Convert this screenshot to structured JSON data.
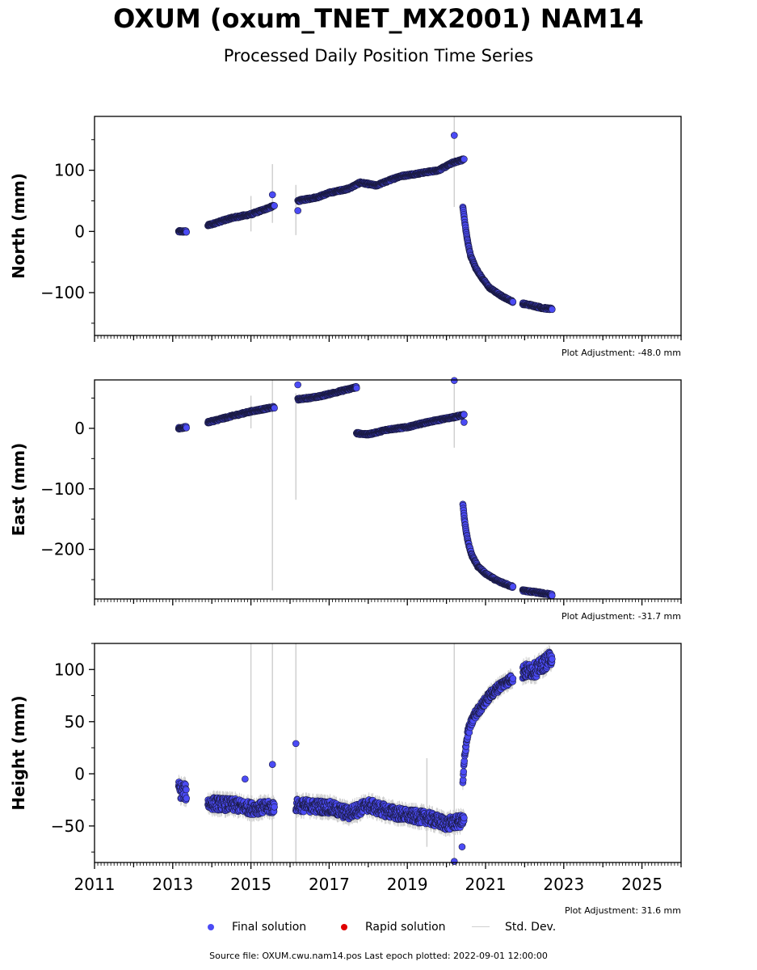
{
  "title": "OXUM (oxum_TNET_MX2001) NAM14",
  "subtitle": "Processed Daily Position Time Series",
  "colors": {
    "final": "#4b4bf5",
    "final_edge": "#1a1a40",
    "rapid": "#e00000",
    "stddev": "#d0d0d0"
  },
  "legend": {
    "final": "Final solution",
    "rapid": "Rapid solution",
    "stddev": "Std. Dev."
  },
  "footer": "Source file: OXUM.cwu.nam14.pos  Last epoch plotted: 2022-09-01 12:00:00",
  "chart_data": [
    {
      "type": "scatter",
      "ylabel": "North (mm)",
      "adjustment": "Plot Adjustment: -48.0 mm",
      "xlim": [
        2011,
        2026
      ],
      "ylim": [
        -170,
        188
      ],
      "yticks": [
        -100,
        0,
        100
      ],
      "ytick_labels": [
        "−100",
        "0",
        "100"
      ],
      "x_labels_visible": false,
      "segments": [
        {
          "x": [
            2013.15,
            2013.35
          ],
          "y": [
            0,
            0
          ],
          "noise": 1.5
        },
        {
          "x": [
            2013.9,
            2014.5,
            2015.0,
            2015.6
          ],
          "y": [
            10,
            22,
            28,
            42
          ],
          "noise": 1.5
        },
        {
          "x": [
            2016.2,
            2016.7,
            2017.0,
            2017.5,
            2017.8,
            2018.2,
            2018.8,
            2019.3,
            2019.8,
            2020.15,
            2020.45
          ],
          "y": [
            50,
            56,
            63,
            70,
            80,
            75,
            90,
            95,
            100,
            112,
            118
          ],
          "noise": 1.5
        },
        {
          "x": [
            2020.42,
            2020.46,
            2020.5,
            2020.55,
            2020.62,
            2020.75,
            2020.9,
            2021.1,
            2021.4,
            2021.7
          ],
          "y": [
            40,
            20,
            0,
            -20,
            -40,
            -60,
            -75,
            -92,
            -105,
            -115
          ],
          "noise": 1.2
        },
        {
          "x": [
            2021.95,
            2022.2,
            2022.45,
            2022.7
          ],
          "y": [
            -118,
            -121,
            -125,
            -127
          ],
          "noise": 1.5
        }
      ],
      "outliers": [
        {
          "x": 2015.55,
          "y": 60
        },
        {
          "x": 2016.2,
          "y": 34
        },
        {
          "x": 2020.2,
          "y": 157
        }
      ],
      "errorbars": [
        {
          "x": 2015.0,
          "y1": 0,
          "y2": 58
        },
        {
          "x": 2015.55,
          "y1": 14,
          "y2": 110
        },
        {
          "x": 2016.15,
          "y1": -6,
          "y2": 76
        },
        {
          "x": 2020.2,
          "y1": 40,
          "y2": 188
        }
      ]
    },
    {
      "type": "scatter",
      "ylabel": "East (mm)",
      "adjustment": "Plot Adjustment: -31.7 mm",
      "xlim": [
        2011,
        2026
      ],
      "ylim": [
        -282,
        80
      ],
      "yticks": [
        -200,
        -100,
        0
      ],
      "ytick_labels": [
        "−200",
        "−100",
        "0"
      ],
      "x_labels_visible": false,
      "segments": [
        {
          "x": [
            2013.15,
            2013.35
          ],
          "y": [
            0,
            2
          ],
          "noise": 1.5
        },
        {
          "x": [
            2013.9,
            2014.5,
            2015.0,
            2015.6
          ],
          "y": [
            10,
            20,
            28,
            35
          ],
          "noise": 1.5
        },
        {
          "x": [
            2016.2,
            2016.7,
            2017.2,
            2017.7
          ],
          "y": [
            48,
            52,
            60,
            68
          ],
          "noise": 1.5
        },
        {
          "x": [
            2017.7,
            2018.0,
            2018.5,
            2019.0,
            2019.5,
            2020.45
          ],
          "y": [
            -8,
            -10,
            -2,
            2,
            10,
            22
          ],
          "noise": 1.5
        },
        {
          "x": [
            2020.42,
            2020.46,
            2020.5,
            2020.56,
            2020.65,
            2020.8,
            2021.0,
            2021.3,
            2021.7
          ],
          "y": [
            -125,
            -150,
            -170,
            -190,
            -210,
            -228,
            -240,
            -252,
            -262
          ],
          "noise": 1.5
        },
        {
          "x": [
            2021.95,
            2022.3,
            2022.7
          ],
          "y": [
            -268,
            -271,
            -275
          ],
          "noise": 1.5
        }
      ],
      "outliers": [
        {
          "x": 2016.2,
          "y": 72
        },
        {
          "x": 2020.2,
          "y": 79
        },
        {
          "x": 2020.45,
          "y": 10
        }
      ],
      "errorbars": [
        {
          "x": 2015.0,
          "y1": 0,
          "y2": 54
        },
        {
          "x": 2015.55,
          "y1": -268,
          "y2": 80
        },
        {
          "x": 2016.15,
          "y1": -118,
          "y2": 58
        },
        {
          "x": 2020.2,
          "y1": -32,
          "y2": 80
        }
      ]
    },
    {
      "type": "scatter",
      "ylabel": "Height (mm)",
      "adjustment": "Plot Adjustment: 31.6 mm",
      "xlim": [
        2011,
        2026
      ],
      "ylim": [
        -85,
        125
      ],
      "yticks": [
        -50,
        0,
        50,
        100
      ],
      "ytick_labels": [
        "−50",
        "0",
        "50",
        "100"
      ],
      "xticks": [
        2011,
        2013,
        2015,
        2017,
        2019,
        2021,
        2023,
        2025
      ],
      "xtick_labels": [
        "2011",
        "2013",
        "2015",
        "2017",
        "2019",
        "2021",
        "2023",
        "2025"
      ],
      "x_labels_visible": true,
      "segments": [
        {
          "x": [
            2013.15,
            2013.35
          ],
          "y": [
            -15,
            -18
          ],
          "noise": 8
        },
        {
          "x": [
            2013.9,
            2014.6,
            2015.0,
            2015.6
          ],
          "y": [
            -28,
            -30,
            -33,
            -32
          ],
          "noise": 6
        },
        {
          "x": [
            2016.15,
            2017.0,
            2017.5,
            2018.0,
            2018.5,
            2019.0,
            2019.5,
            2020.0,
            2020.45
          ],
          "y": [
            -30,
            -32,
            -38,
            -30,
            -36,
            -40,
            -42,
            -48,
            -45
          ],
          "noise": 6
        },
        {
          "x": [
            2020.42,
            2020.47,
            2020.55,
            2020.7,
            2020.9,
            2021.1,
            2021.4,
            2021.7
          ],
          "y": [
            -10,
            20,
            40,
            55,
            65,
            75,
            85,
            92
          ],
          "noise": 4
        },
        {
          "x": [
            2021.95,
            2022.3,
            2022.7
          ],
          "y": [
            98,
            100,
            112
          ],
          "noise": 7
        }
      ],
      "outliers": [
        {
          "x": 2014.85,
          "y": -5
        },
        {
          "x": 2015.55,
          "y": 9
        },
        {
          "x": 2016.15,
          "y": 29
        },
        {
          "x": 2020.2,
          "y": -84
        },
        {
          "x": 2020.4,
          "y": -70
        }
      ],
      "errorbars": [
        {
          "x": 2015.0,
          "y1": -85,
          "y2": 125
        },
        {
          "x": 2015.55,
          "y1": -85,
          "y2": 125
        },
        {
          "x": 2016.15,
          "y1": -85,
          "y2": 125
        },
        {
          "x": 2020.2,
          "y1": -85,
          "y2": 125
        },
        {
          "x": 2019.5,
          "y1": -70,
          "y2": 15
        }
      ]
    }
  ]
}
